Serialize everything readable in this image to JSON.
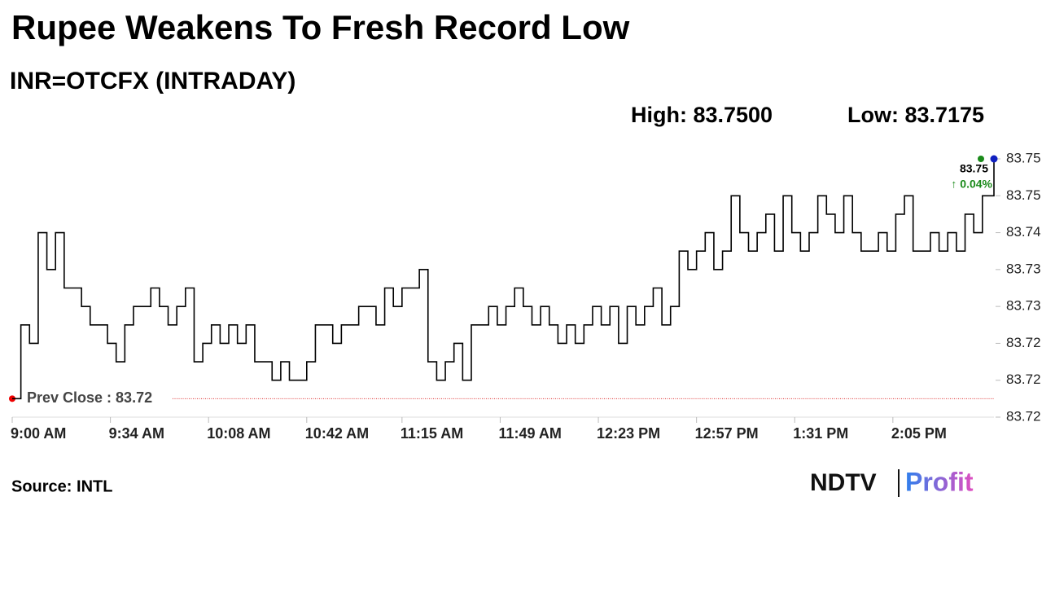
{
  "chart_data": {
    "type": "line",
    "title": "Rupee Weakens To Fresh Record Low",
    "subtitle": "INR=OTCFX (INTRADAY)",
    "high_label": "High: 83.7500",
    "low_label": "Low: 83.7175",
    "last_value": 83.75,
    "change_label": "↑ 0.04%",
    "prev_close": {
      "value": 83.7175,
      "label": "Prev Close : 83.72"
    },
    "source": "Source: INTL",
    "logo": {
      "left": "NDTV",
      "right": "Profit"
    },
    "color": "#000000",
    "x": [
      "09:00",
      "09:03",
      "09:06",
      "09:09",
      "09:12",
      "09:15",
      "09:18",
      "09:21",
      "09:24",
      "09:27",
      "09:30",
      "09:33",
      "09:36",
      "09:39",
      "09:42",
      "09:45",
      "09:48",
      "09:51",
      "09:54",
      "09:57",
      "10:00",
      "10:03",
      "10:06",
      "10:09",
      "10:12",
      "10:15",
      "10:18",
      "10:21",
      "10:24",
      "10:27",
      "10:30",
      "10:33",
      "10:36",
      "10:39",
      "10:42",
      "10:45",
      "10:48",
      "10:51",
      "10:54",
      "10:57",
      "11:00",
      "11:03",
      "11:06",
      "11:09",
      "11:12",
      "11:15",
      "11:18",
      "11:21",
      "11:24",
      "11:27",
      "11:30",
      "11:33",
      "11:36",
      "11:39",
      "11:42",
      "11:45",
      "11:48",
      "11:51",
      "11:54",
      "11:57",
      "12:00",
      "12:03",
      "12:06",
      "12:09",
      "12:12",
      "12:15",
      "12:18",
      "12:21",
      "12:24",
      "12:27",
      "12:30",
      "12:33",
      "12:36",
      "12:39",
      "12:42",
      "12:45",
      "12:48",
      "12:51",
      "12:54",
      "12:57",
      "13:00",
      "13:03",
      "13:06",
      "13:09",
      "13:12",
      "13:15",
      "13:18",
      "13:21",
      "13:24",
      "13:27",
      "13:30",
      "13:33",
      "13:36",
      "13:39",
      "13:42",
      "13:45",
      "13:48",
      "13:51",
      "13:54",
      "13:57",
      "14:00",
      "14:03",
      "14:06",
      "14:09",
      "14:12",
      "14:15",
      "14:18",
      "14:21",
      "14:24",
      "14:27",
      "14:30",
      "14:33",
      "14:36",
      "14:39",
      "14:40"
    ],
    "values": [
      83.7175,
      83.7275,
      83.725,
      83.74,
      83.735,
      83.74,
      83.7325,
      83.7325,
      83.73,
      83.7275,
      83.7275,
      83.725,
      83.7225,
      83.7275,
      83.73,
      83.73,
      83.7325,
      83.73,
      83.7275,
      83.73,
      83.7325,
      83.7225,
      83.725,
      83.7275,
      83.725,
      83.7275,
      83.725,
      83.7275,
      83.7225,
      83.7225,
      83.72,
      83.7225,
      83.72,
      83.72,
      83.7225,
      83.7275,
      83.7275,
      83.725,
      83.7275,
      83.7275,
      83.73,
      83.73,
      83.7275,
      83.7325,
      83.73,
      83.7325,
      83.7325,
      83.735,
      83.7225,
      83.72,
      83.7225,
      83.725,
      83.72,
      83.7275,
      83.7275,
      83.73,
      83.7275,
      83.73,
      83.7325,
      83.73,
      83.7275,
      83.73,
      83.7275,
      83.725,
      83.7275,
      83.725,
      83.7275,
      83.73,
      83.7275,
      83.73,
      83.725,
      83.73,
      83.7275,
      83.73,
      83.7325,
      83.7275,
      83.73,
      83.7375,
      83.735,
      83.7375,
      83.74,
      83.735,
      83.7375,
      83.745,
      83.74,
      83.7375,
      83.74,
      83.7425,
      83.7375,
      83.745,
      83.74,
      83.7375,
      83.74,
      83.745,
      83.7425,
      83.74,
      83.745,
      83.74,
      83.7375,
      83.7375,
      83.74,
      83.7375,
      83.7425,
      83.745,
      83.7375,
      83.7375,
      83.74,
      83.7375,
      83.74,
      83.7375,
      83.7425,
      83.74,
      83.745,
      83.745,
      83.75
    ],
    "xlim": [
      "09:00",
      "14:40"
    ],
    "xticks": [
      {
        "value": "09:00",
        "label": "9:00 AM"
      },
      {
        "value": "09:34",
        "label": "9:34 AM"
      },
      {
        "value": "10:08",
        "label": "10:08 AM"
      },
      {
        "value": "10:42",
        "label": "10:42 AM"
      },
      {
        "value": "11:15",
        "label": "11:15 AM"
      },
      {
        "value": "11:49",
        "label": "11:49 AM"
      },
      {
        "value": "12:23",
        "label": "12:23 PM"
      },
      {
        "value": "12:57",
        "label": "12:57 PM"
      },
      {
        "value": "13:31",
        "label": "1:31 PM"
      },
      {
        "value": "14:05",
        "label": "2:05 PM"
      }
    ],
    "ylim": [
      83.715,
      83.75
    ],
    "yticks": [
      {
        "value": 83.715,
        "label": "83.72"
      },
      83.72,
      {
        "value": 83.725,
        "label": "83.72"
      },
      83.73,
      {
        "value": 83.735,
        "label": "83.73"
      },
      83.74,
      {
        "value": 83.745,
        "label": "83.75"
      },
      83.75
    ],
    "grid": false
  }
}
